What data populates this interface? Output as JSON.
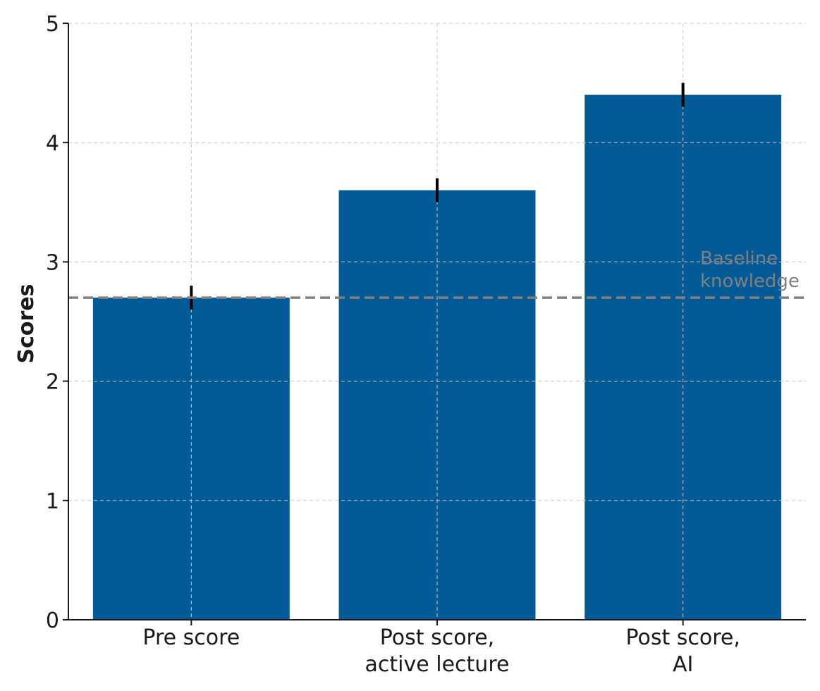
{
  "chart_data": {
    "type": "bar",
    "categories": [
      [
        "Pre score"
      ],
      [
        "Post score,",
        "active lecture"
      ],
      [
        "Post score,",
        "AI"
      ]
    ],
    "values": [
      2.7,
      3.6,
      4.4
    ],
    "errors": [
      0.1,
      0.1,
      0.1
    ],
    "ylabel": "Scores",
    "xlabel": "",
    "title": "",
    "ylim": [
      0,
      5
    ],
    "yticks": [
      "0",
      "1",
      "2",
      "3",
      "4",
      "5"
    ],
    "grid": true,
    "bar_color": "#025b97",
    "error_color": "#000000",
    "reference_line": {
      "value": 2.7,
      "label_lines": [
        "Baseline",
        "knowledge"
      ],
      "color": "#808080",
      "style": "dashed"
    }
  }
}
